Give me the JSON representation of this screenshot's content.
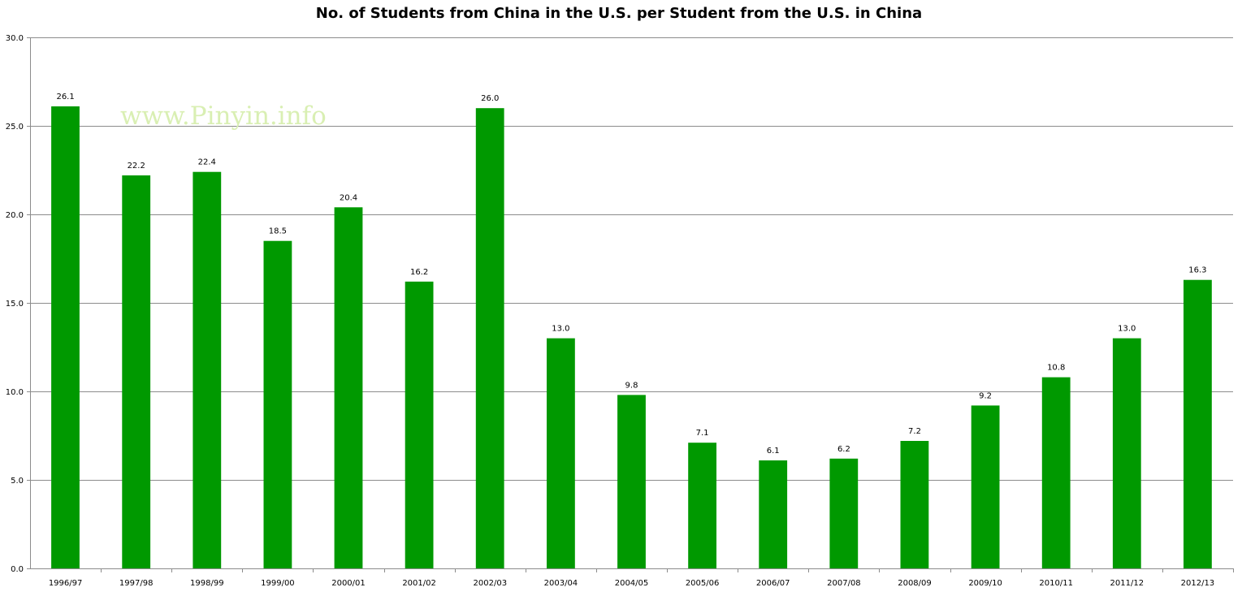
{
  "watermark": "www.Pinyin.info",
  "chart_data": {
    "type": "bar",
    "title": "No. of Students from China in the U.S. per Student from the U.S. in China",
    "xlabel": "",
    "ylabel": "",
    "ylim": [
      0,
      30
    ],
    "yticks": [
      "0.0",
      "5.0",
      "10.0",
      "15.0",
      "20.0",
      "25.0",
      "30.0"
    ],
    "grid": true,
    "legend": "none",
    "bar_color": "#009900",
    "categories": [
      "1996/97",
      "1997/98",
      "1998/99",
      "1999/00",
      "2000/01",
      "2001/02",
      "2002/03",
      "2003/04",
      "2004/05",
      "2005/06",
      "2006/07",
      "2007/08",
      "2008/09",
      "2009/10",
      "2010/11",
      "2011/12",
      "2012/13"
    ],
    "values": [
      26.1,
      22.2,
      22.4,
      18.5,
      20.4,
      16.2,
      26.0,
      13.0,
      9.8,
      7.1,
      6.1,
      6.2,
      7.2,
      9.2,
      10.8,
      13.0,
      16.3
    ],
    "data_labels": [
      "26.1",
      "22.2",
      "22.4",
      "18.5",
      "20.4",
      "16.2",
      "26.0",
      "13.0",
      "9.8",
      "7.1",
      "6.1",
      "6.2",
      "7.2",
      "9.2",
      "10.8",
      "13.0",
      "16.3"
    ]
  }
}
